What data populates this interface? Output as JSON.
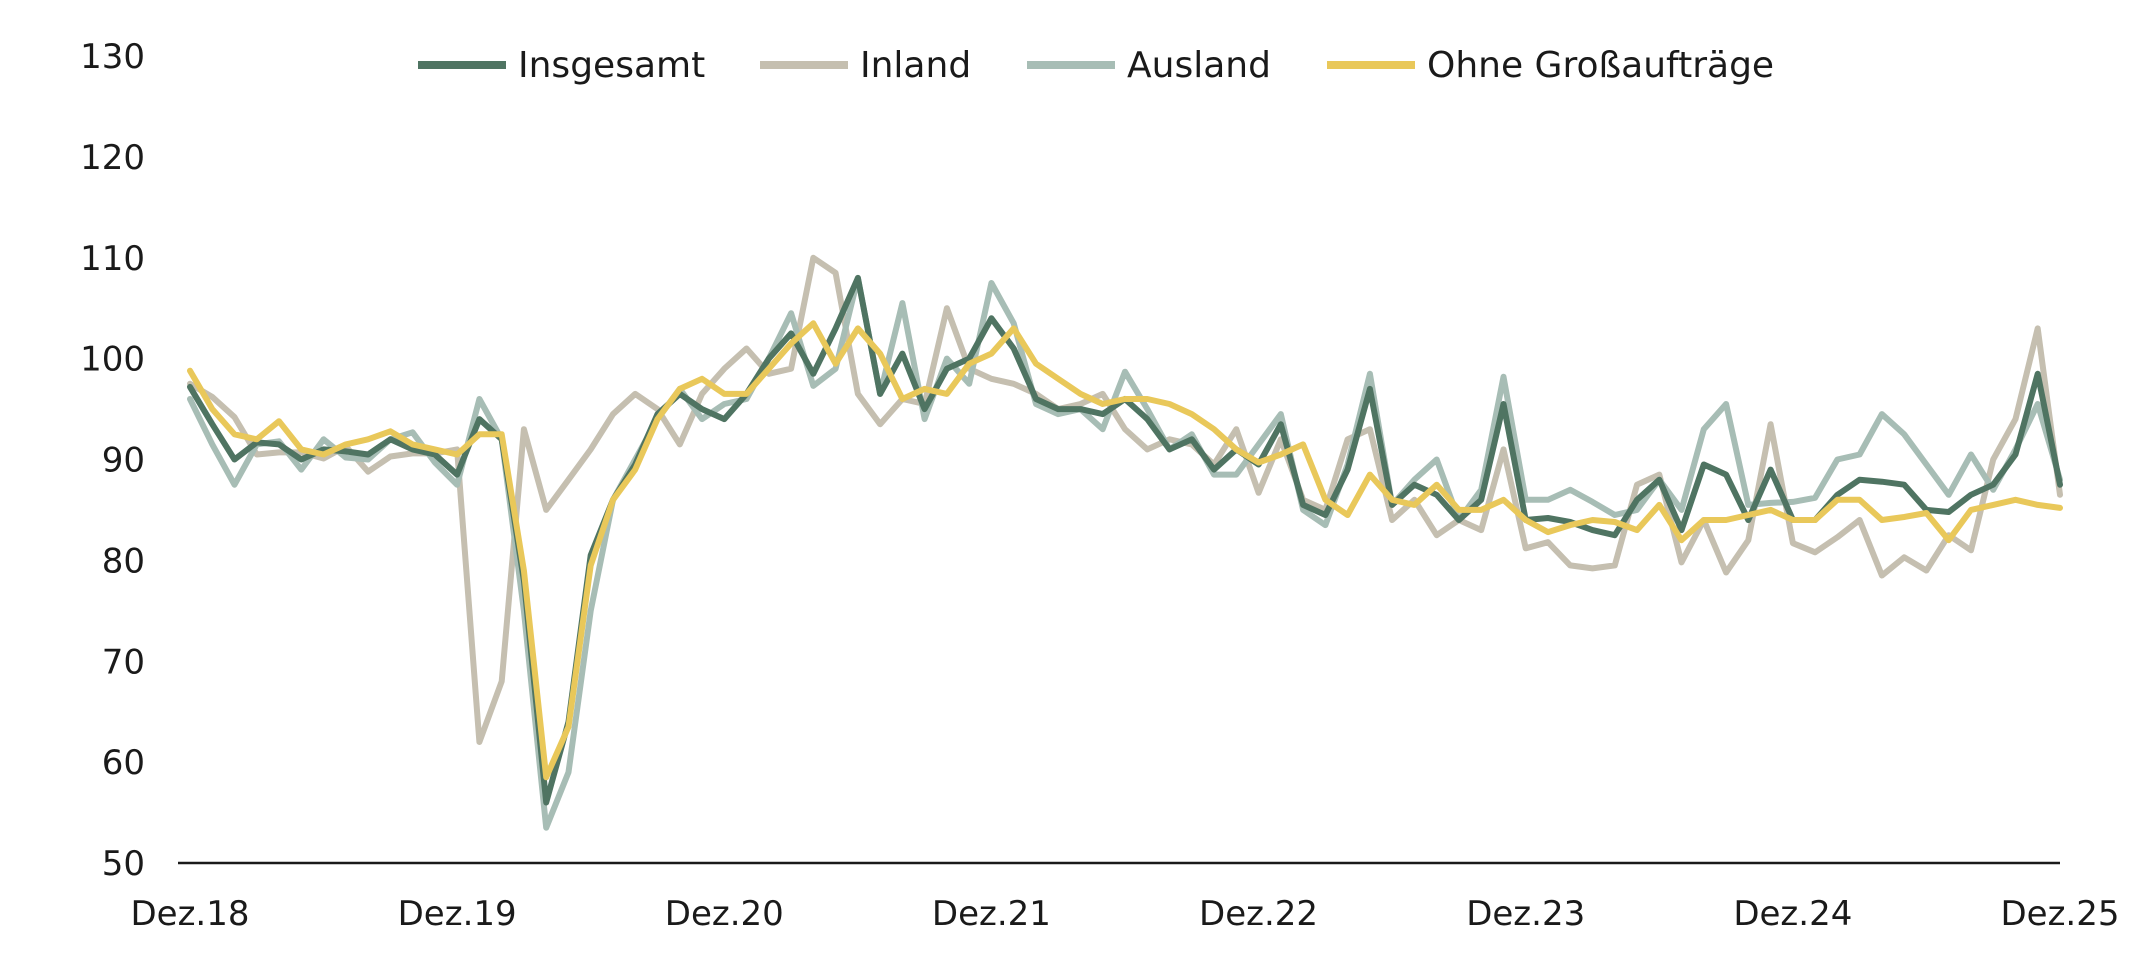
{
  "chart_data": {
    "type": "line",
    "title": "",
    "xlabel": "",
    "ylabel": "",
    "ylim": [
      50,
      130
    ],
    "yticks": [
      50,
      60,
      70,
      80,
      90,
      100,
      110,
      120,
      130
    ],
    "x_start": "Dez.18",
    "xticks": [
      {
        "label": "Dez.18",
        "index": 0
      },
      {
        "label": "Dez.19",
        "index": 12
      },
      {
        "label": "Dez.20",
        "index": 24
      },
      {
        "label": "Dez.21",
        "index": 36
      },
      {
        "label": "Dez.22",
        "index": 48
      },
      {
        "label": "Dez.23",
        "index": 60
      },
      {
        "label": "Dez.24",
        "index": 72
      },
      {
        "label": "Dez.25",
        "index": 84
      }
    ],
    "legend_position": "top-center",
    "grid": false,
    "series": [
      {
        "name": "Inland",
        "color": "#c5bfb0",
        "values": [
          97.5,
          96.2,
          94.2,
          90.5,
          90.7,
          90.7,
          90.1,
          91.3,
          88.8,
          90.3,
          90.6,
          90.6,
          91.0,
          62.0,
          68.0,
          93.0,
          85.0,
          88.0,
          91.0,
          94.5,
          96.5,
          95.0,
          91.5,
          96.5,
          99.0,
          101.0,
          98.5,
          99.0,
          110.0,
          108.5,
          96.5,
          93.5,
          96.0,
          95.5,
          105.0,
          99.0,
          98.0,
          97.5,
          96.5,
          95.0,
          95.5,
          96.5,
          93.0,
          91.0,
          92.0,
          91.5,
          89.5,
          93.0,
          86.7,
          92.0,
          86.0,
          85.0,
          92.0,
          93.0,
          84.0,
          86.0,
          82.5,
          84.0,
          83.0,
          91.0,
          81.2,
          81.8,
          79.5,
          79.2,
          79.5,
          87.5,
          88.5,
          79.8,
          84.0,
          78.8,
          82.0,
          93.5,
          81.7,
          80.8,
          82.3,
          84.0,
          78.5,
          80.3,
          79.0,
          82.5,
          81.0,
          90.0,
          94.0,
          103.0,
          86.5
        ]
      },
      {
        "name": "Ausland",
        "color": "#a7bdb5",
        "values": [
          96.0,
          91.5,
          87.5,
          91.5,
          91.8,
          89.0,
          92.0,
          90.2,
          90.0,
          92.0,
          92.7,
          89.7,
          87.5,
          96.0,
          92.0,
          75.0,
          53.5,
          59.0,
          75.0,
          86.0,
          90.0,
          94.0,
          97.0,
          94.0,
          95.5,
          96.0,
          100.0,
          104.5,
          97.3,
          99.0,
          108.0,
          96.5,
          105.5,
          94.0,
          100.0,
          97.5,
          107.5,
          103.5,
          95.5,
          94.5,
          95.0,
          93.0,
          98.7,
          95.0,
          91.0,
          92.5,
          88.5,
          88.5,
          91.5,
          94.5,
          85.0,
          83.5,
          89.5,
          98.5,
          85.5,
          88.0,
          90.0,
          84.0,
          87.0,
          98.2,
          86.0,
          86.0,
          87.0,
          85.8,
          84.5,
          85.0,
          88.0,
          85.0,
          93.0,
          95.5,
          85.5,
          85.7,
          85.8,
          86.2,
          90.0,
          90.5,
          94.5,
          92.5,
          89.5,
          86.5,
          90.5,
          87.0,
          91.0,
          95.5,
          88.0
        ]
      },
      {
        "name": "Insgesamt",
        "color": "#4f7462",
        "values": [
          97.2,
          93.5,
          90.0,
          91.7,
          91.5,
          90.0,
          91.0,
          90.8,
          90.5,
          92.0,
          91.0,
          90.5,
          88.5,
          94.0,
          92.0,
          78.0,
          56.0,
          64.0,
          80.5,
          86.0,
          89.5,
          94.5,
          96.5,
          95.0,
          94.0,
          96.5,
          100.0,
          102.5,
          98.5,
          103.0,
          108.0,
          96.5,
          100.5,
          95.0,
          99.0,
          100.0,
          104.0,
          101.0,
          96.0,
          95.0,
          95.0,
          94.5,
          96.0,
          94.0,
          91.0,
          92.0,
          89.0,
          91.0,
          89.5,
          93.5,
          85.5,
          84.5,
          89.0,
          97.0,
          85.5,
          87.5,
          86.5,
          84.0,
          86.0,
          95.5,
          84.0,
          84.2,
          83.8,
          83.0,
          82.5,
          86.0,
          88.0,
          83.0,
          89.5,
          88.5,
          84.0,
          89.0,
          84.0,
          84.0,
          86.5,
          88.0,
          87.8,
          87.5,
          85.0,
          84.8,
          86.5,
          87.5,
          90.5,
          98.5,
          87.5
        ]
      },
      {
        "name": "Ohne Großaufträge",
        "color": "#e9c85a",
        "values": [
          98.8,
          95.0,
          92.5,
          92.0,
          93.8,
          91.0,
          90.5,
          91.5,
          92.0,
          92.8,
          91.5,
          91.0,
          90.5,
          92.5,
          92.5,
          79.0,
          58.5,
          63.5,
          79.5,
          86.0,
          89.0,
          94.0,
          97.0,
          98.0,
          96.5,
          96.5,
          99.0,
          101.5,
          103.5,
          99.5,
          103.0,
          100.5,
          96.0,
          97.0,
          96.5,
          99.5,
          100.5,
          103.0,
          99.5,
          98.0,
          96.5,
          95.5,
          96.0,
          96.0,
          95.5,
          94.5,
          93.0,
          91.0,
          89.7,
          90.5,
          91.5,
          86.0,
          84.5,
          88.5,
          86.0,
          85.5,
          87.5,
          85.0,
          85.0,
          86.0,
          84.0,
          82.8,
          83.5,
          84.0,
          83.8,
          83.0,
          85.5,
          82.0,
          84.0,
          84.0,
          84.5,
          85.0,
          84.0,
          84.0,
          86.0,
          86.0,
          84.0,
          84.3,
          84.7,
          82.0,
          85.0,
          85.5,
          86.0,
          85.5,
          85.2
        ]
      }
    ],
    "legend_order": [
      "Insgesamt",
      "Inland",
      "Ausland",
      "Ohne Großaufträge"
    ]
  }
}
